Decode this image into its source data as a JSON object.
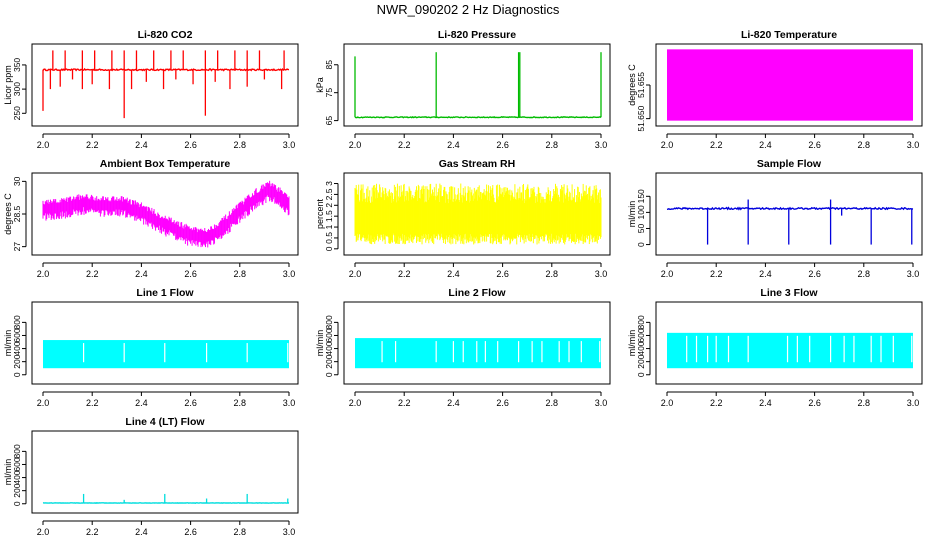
{
  "figure_title": "NWR_090202  2 Hz Diagnostics",
  "chart_data": [
    {
      "type": "line",
      "title": "Li-820 CO2",
      "xlabel": "",
      "ylabel": "Licor ppm",
      "xlim": [
        2.0,
        3.0
      ],
      "ylim": [
        232,
        385
      ],
      "xticks": [
        "2.0",
        "2.2",
        "2.4",
        "2.6",
        "2.8",
        "3.0"
      ],
      "yticks": [
        250,
        300,
        350
      ],
      "color": "#ff0000",
      "series": [
        {
          "kind": "noisy",
          "base": 340,
          "noise": 1.5,
          "spikes": [
            [
              2.04,
              380
            ],
            [
              2.09,
              380
            ],
            [
              2.16,
              380
            ],
            [
              2.21,
              380
            ],
            [
              2.28,
              380
            ],
            [
              2.33,
              380
            ],
            [
              2.38,
              380
            ],
            [
              2.45,
              380
            ],
            [
              2.52,
              380
            ],
            [
              2.57,
              380
            ],
            [
              2.66,
              380
            ],
            [
              2.71,
              380
            ],
            [
              2.78,
              380
            ],
            [
              2.83,
              380
            ],
            [
              2.88,
              380
            ],
            [
              2.98,
              380
            ],
            [
              2.0,
              255
            ],
            [
              2.03,
              300
            ],
            [
              2.07,
              305
            ],
            [
              2.12,
              320
            ],
            [
              2.16,
              300
            ],
            [
              2.2,
              310
            ],
            [
              2.27,
              300
            ],
            [
              2.33,
              240
            ],
            [
              2.36,
              300
            ],
            [
              2.42,
              315
            ],
            [
              2.49,
              300
            ],
            [
              2.54,
              320
            ],
            [
              2.61,
              310
            ],
            [
              2.66,
              245
            ],
            [
              2.7,
              315
            ],
            [
              2.76,
              300
            ],
            [
              2.83,
              305
            ],
            [
              2.9,
              320
            ],
            [
              2.97,
              300
            ]
          ]
        }
      ]
    },
    {
      "type": "line",
      "title": "Li-820 Pressure",
      "xlabel": "",
      "ylabel": "kPa",
      "xlim": [
        2.0,
        3.0
      ],
      "ylim": [
        64.5,
        91
      ],
      "xticks": [
        "2.0",
        "2.2",
        "2.4",
        "2.6",
        "2.8",
        "3.0"
      ],
      "yticks": [
        65,
        75,
        85
      ],
      "color": "#00bb00",
      "series": [
        {
          "kind": "noisy",
          "base": 66.2,
          "noise": 0.15,
          "spikes": [
            [
              2.0,
              88
            ],
            [
              2.33,
              89.5
            ],
            [
              2.665,
              89.5
            ],
            [
              2.67,
              89.5
            ],
            [
              3.0,
              89.5
            ]
          ]
        }
      ]
    },
    {
      "type": "area",
      "title": "Li-820 Temperature",
      "xlabel": "",
      "ylabel": "degrees C",
      "xlim": [
        2.0,
        3.0
      ],
      "ylim": [
        51.6495,
        51.6605
      ],
      "xticks": [
        "2.0",
        "2.2",
        "2.4",
        "2.6",
        "2.8",
        "3.0"
      ],
      "yticks": [
        51.65,
        51.655
      ],
      "color": "#ff00ff",
      "series": [
        {
          "kind": "band",
          "low": 51.6497,
          "high": 51.6603
        }
      ]
    },
    {
      "type": "line",
      "title": "Ambient Box Temperature",
      "xlabel": "",
      "ylabel": "degrees C",
      "xlim": [
        2.0,
        3.0
      ],
      "ylim": [
        26.8,
        30.2
      ],
      "xticks": [
        "2.0",
        "2.2",
        "2.4",
        "2.6",
        "2.8",
        "3.0"
      ],
      "yticks": [
        27.0,
        28.5,
        30.0
      ],
      "color": "#ff00ff",
      "series": [
        {
          "kind": "curve",
          "noise": 0.45,
          "points": [
            [
              2.0,
              28.7
            ],
            [
              2.08,
              28.8
            ],
            [
              2.16,
              29.0
            ],
            [
              2.24,
              28.9
            ],
            [
              2.32,
              28.9
            ],
            [
              2.4,
              28.6
            ],
            [
              2.48,
              28.1
            ],
            [
              2.56,
              27.7
            ],
            [
              2.62,
              27.45
            ],
            [
              2.68,
              27.5
            ],
            [
              2.74,
              28.0
            ],
            [
              2.8,
              28.6
            ],
            [
              2.86,
              29.2
            ],
            [
              2.92,
              29.6
            ],
            [
              2.96,
              29.3
            ],
            [
              3.0,
              28.9
            ]
          ]
        }
      ]
    },
    {
      "type": "area",
      "title": "Gas Stream RH",
      "xlabel": "",
      "ylabel": "percent",
      "xlim": [
        2.0,
        3.0
      ],
      "ylim": [
        -0.1,
        3.3
      ],
      "xticks": [
        "2.0",
        "2.2",
        "2.4",
        "2.6",
        "2.8",
        "3.0"
      ],
      "yticks": [
        0.0,
        0.5,
        1.0,
        1.5,
        2.0,
        2.5,
        3.0
      ],
      "color": "#ffff00",
      "series": [
        {
          "kind": "noisyband",
          "low": 0.2,
          "high": 3.0
        }
      ]
    },
    {
      "type": "line",
      "title": "Sample Flow",
      "xlabel": "",
      "ylabel": "ml/min",
      "xlim": [
        2.0,
        3.0
      ],
      "ylim": [
        -20,
        210
      ],
      "xticks": [
        "2.0",
        "2.2",
        "2.4",
        "2.6",
        "2.8",
        "3.0"
      ],
      "yticks": [
        0,
        50,
        100,
        150
      ],
      "color": "#0000dd",
      "series": [
        {
          "kind": "noisy",
          "base": 112,
          "noise": 2.5,
          "spikes": [
            [
              2.165,
              0
            ],
            [
              2.33,
              0
            ],
            [
              2.33,
              140
            ],
            [
              2.495,
              0
            ],
            [
              2.665,
              0
            ],
            [
              2.665,
              140
            ],
            [
              2.71,
              90
            ],
            [
              2.83,
              0
            ],
            [
              2.995,
              0
            ]
          ]
        }
      ]
    },
    {
      "type": "area",
      "title": "Line 1 Flow",
      "xlabel": "",
      "ylabel": "ml/min",
      "xlim": [
        2.0,
        3.0
      ],
      "ylim": [
        -80,
        1050
      ],
      "xticks": [
        "2.0",
        "2.2",
        "2.4",
        "2.6",
        "2.8",
        "3.0"
      ],
      "yticks": [
        0,
        200,
        400,
        600,
        800
      ],
      "color": "#00ffff",
      "series": [
        {
          "kind": "bandgaps",
          "low": 100,
          "high": 530,
          "gaps": [
            2.165,
            2.33,
            2.495,
            2.665,
            2.83,
            2.995
          ]
        }
      ]
    },
    {
      "type": "area",
      "title": "Line 2 Flow",
      "xlabel": "",
      "ylabel": "ml/min",
      "xlim": [
        2.0,
        3.0
      ],
      "ylim": [
        -80,
        1050
      ],
      "xticks": [
        "2.0",
        "2.2",
        "2.4",
        "2.6",
        "2.8",
        "3.0"
      ],
      "yticks": [
        0,
        200,
        400,
        600,
        800
      ],
      "color": "#00ffff",
      "series": [
        {
          "kind": "bandgaps",
          "low": 100,
          "high": 560,
          "gaps": [
            2.11,
            2.165,
            2.33,
            2.4,
            2.44,
            2.495,
            2.53,
            2.58,
            2.665,
            2.72,
            2.76,
            2.83,
            2.87,
            2.92,
            2.995
          ]
        }
      ]
    },
    {
      "type": "area",
      "title": "Line 3 Flow",
      "xlabel": "",
      "ylabel": "ml/min",
      "xlim": [
        2.0,
        3.0
      ],
      "ylim": [
        -80,
        1050
      ],
      "xticks": [
        "2.0",
        "2.2",
        "2.4",
        "2.6",
        "2.8",
        "3.0"
      ],
      "yticks": [
        0,
        200,
        400,
        600,
        800
      ],
      "color": "#00ffff",
      "series": [
        {
          "kind": "bandgaps",
          "low": 100,
          "high": 640,
          "gaps": [
            2.08,
            2.12,
            2.165,
            2.2,
            2.25,
            2.33,
            2.49,
            2.53,
            2.58,
            2.665,
            2.72,
            2.76,
            2.83,
            2.87,
            2.92,
            2.995
          ]
        }
      ]
    },
    {
      "type": "line",
      "title": "Line 4 (LT) Flow",
      "xlabel": "",
      "ylabel": "ml/min",
      "xlim": [
        2.0,
        3.0
      ],
      "ylim": [
        -80,
        1050
      ],
      "xticks": [
        "2.0",
        "2.2",
        "2.4",
        "2.6",
        "2.8",
        "3.0"
      ],
      "yticks": [
        0,
        200,
        400,
        600,
        800
      ],
      "color": "#00dddd",
      "series": [
        {
          "kind": "noisy",
          "base": 12,
          "noise": 3,
          "spikes": [
            [
              2.165,
              150
            ],
            [
              2.33,
              60
            ],
            [
              2.495,
              150
            ],
            [
              2.665,
              80
            ],
            [
              2.83,
              150
            ],
            [
              2.995,
              80
            ]
          ]
        }
      ]
    }
  ]
}
